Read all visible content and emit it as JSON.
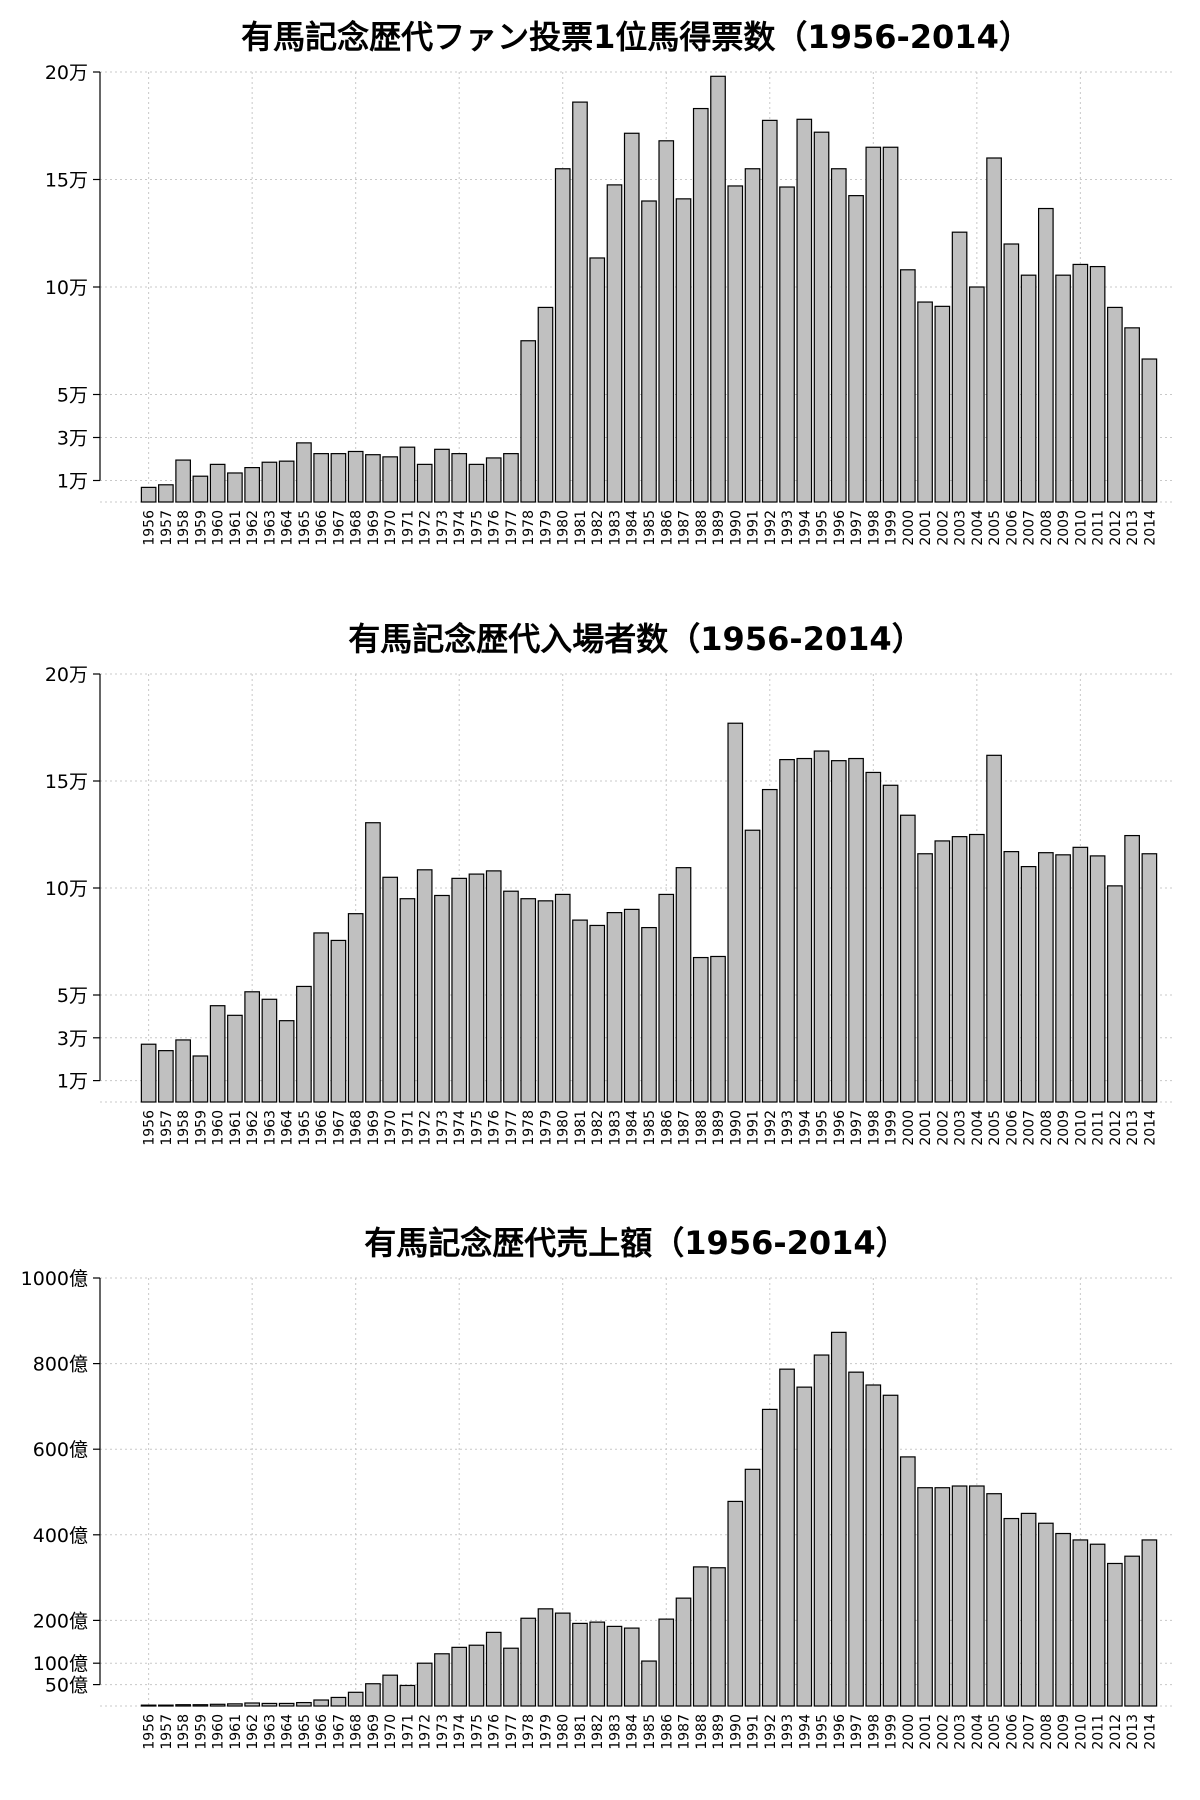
{
  "chart_data": [
    {
      "type": "bar",
      "title": "有馬記念歴代ファン投票1位馬得票数（1956-2014）",
      "categories": [
        "1956",
        "1957",
        "1958",
        "1959",
        "1960",
        "1961",
        "1962",
        "1963",
        "1964",
        "1965",
        "1966",
        "1967",
        "1968",
        "1969",
        "1970",
        "1971",
        "1972",
        "1973",
        "1974",
        "1975",
        "1976",
        "1977",
        "1978",
        "1979",
        "1980",
        "1981",
        "1982",
        "1983",
        "1984",
        "1985",
        "1986",
        "1987",
        "1988",
        "1989",
        "1990",
        "1991",
        "1992",
        "1993",
        "1994",
        "1995",
        "1996",
        "1997",
        "1998",
        "1999",
        "2000",
        "2001",
        "2002",
        "2003",
        "2004",
        "2005",
        "2006",
        "2007",
        "2008",
        "2009",
        "2010",
        "2011",
        "2012",
        "2013",
        "2014"
      ],
      "values": [
        6800,
        8000,
        19500,
        12000,
        17500,
        13500,
        16000,
        18500,
        19000,
        27500,
        22500,
        22500,
        23500,
        22000,
        21000,
        25500,
        17500,
        24500,
        22500,
        17500,
        20500,
        22500,
        75000,
        90500,
        155000,
        186000,
        113500,
        147500,
        171500,
        140000,
        168000,
        141000,
        183000,
        198000,
        147000,
        155000,
        177500,
        146500,
        178000,
        172000,
        155000,
        142500,
        165000,
        165000,
        108000,
        93000,
        91000,
        125500,
        100000,
        160000,
        120000,
        105500,
        136500,
        105500,
        110500,
        109500,
        90500,
        81000,
        66500
      ],
      "ylim": [
        0,
        200000
      ],
      "yticks": [
        10000,
        30000,
        50000,
        100000,
        150000,
        200000
      ],
      "ytick_labels": [
        "1万",
        "3万",
        "5万",
        "10万",
        "15万",
        "20万"
      ],
      "grid": true
    },
    {
      "type": "bar",
      "title": "有馬記念歴代入場者数（1956-2014）",
      "categories": [
        "1956",
        "1957",
        "1958",
        "1959",
        "1960",
        "1961",
        "1962",
        "1963",
        "1964",
        "1965",
        "1966",
        "1967",
        "1968",
        "1969",
        "1970",
        "1971",
        "1972",
        "1973",
        "1974",
        "1975",
        "1976",
        "1977",
        "1978",
        "1979",
        "1980",
        "1981",
        "1982",
        "1983",
        "1984",
        "1985",
        "1986",
        "1987",
        "1988",
        "1989",
        "1990",
        "1991",
        "1992",
        "1993",
        "1994",
        "1995",
        "1996",
        "1997",
        "1998",
        "1999",
        "2000",
        "2001",
        "2002",
        "2003",
        "2004",
        "2005",
        "2006",
        "2007",
        "2008",
        "2009",
        "2010",
        "2011",
        "2012",
        "2013",
        "2014"
      ],
      "values": [
        27000,
        24000,
        29000,
        21500,
        45000,
        40500,
        51500,
        48000,
        38000,
        54000,
        79000,
        75500,
        88000,
        130500,
        105000,
        95000,
        108500,
        96500,
        104500,
        106500,
        108000,
        98500,
        95000,
        94000,
        97000,
        85000,
        82500,
        88500,
        90000,
        81500,
        97000,
        109500,
        67500,
        68000,
        177000,
        127000,
        146000,
        160000,
        160500,
        164000,
        159500,
        160500,
        154000,
        148000,
        134000,
        116000,
        122000,
        124000,
        125000,
        162000,
        117000,
        110000,
        116500,
        115500,
        119000,
        115000,
        101000,
        124500,
        116000
      ],
      "ylim": [
        0,
        200000
      ],
      "yticks": [
        10000,
        30000,
        50000,
        100000,
        150000,
        200000
      ],
      "ytick_labels": [
        "1万",
        "3万",
        "5万",
        "10万",
        "15万",
        "20万"
      ],
      "grid": true
    },
    {
      "type": "bar",
      "title": "有馬記念歴代売上額（1956-2014）",
      "categories": [
        "1956",
        "1957",
        "1958",
        "1959",
        "1960",
        "1961",
        "1962",
        "1963",
        "1964",
        "1965",
        "1966",
        "1967",
        "1968",
        "1969",
        "1970",
        "1971",
        "1972",
        "1973",
        "1974",
        "1975",
        "1976",
        "1977",
        "1978",
        "1979",
        "1980",
        "1981",
        "1982",
        "1983",
        "1984",
        "1985",
        "1986",
        "1987",
        "1988",
        "1989",
        "1990",
        "1991",
        "1992",
        "1993",
        "1994",
        "1995",
        "1996",
        "1997",
        "1998",
        "1999",
        "2000",
        "2001",
        "2002",
        "2003",
        "2004",
        "2005",
        "2006",
        "2007",
        "2008",
        "2009",
        "2010",
        "2011",
        "2012",
        "2013",
        "2014"
      ],
      "values": [
        2,
        2,
        3,
        3,
        4,
        5,
        7,
        6,
        6,
        8,
        14,
        20,
        32,
        52,
        72,
        48,
        100,
        122,
        137,
        142,
        172,
        135,
        205,
        227,
        217,
        193,
        196,
        186,
        182,
        105,
        203,
        252,
        325,
        323,
        478,
        553,
        693,
        787,
        745,
        820,
        873,
        780,
        750,
        726,
        582,
        510,
        510,
        514,
        514,
        496,
        438,
        450,
        427,
        403,
        388,
        378,
        333,
        350,
        388
      ],
      "ylim": [
        0,
        1000
      ],
      "yticks": [
        50,
        100,
        200,
        400,
        600,
        800,
        1000
      ],
      "ytick_labels": [
        "50億",
        "100億",
        "200億",
        "400億",
        "600億",
        "800億",
        "1000億"
      ],
      "grid": true
    }
  ]
}
